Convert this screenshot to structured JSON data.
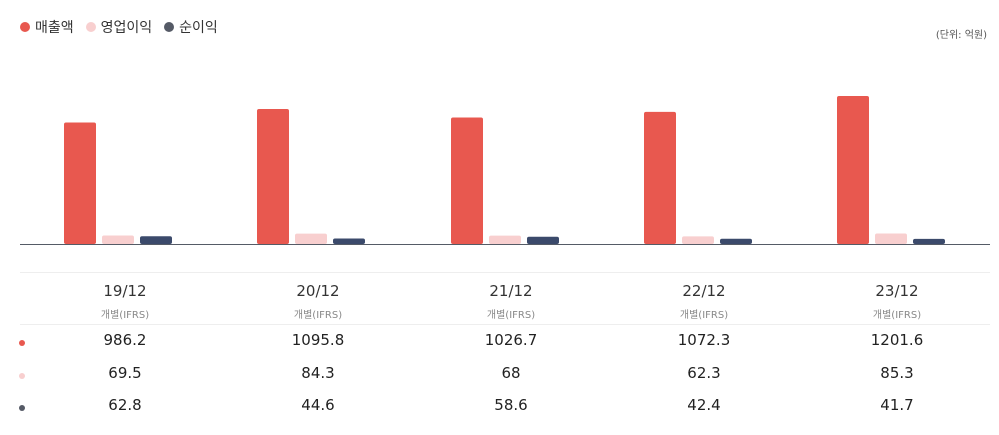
{
  "legend": [
    {
      "label": "매출액",
      "color": "#e8584f"
    },
    {
      "label": "영업이익",
      "color": "#f8cfcf"
    },
    {
      "label": "순이익",
      "color": "#555a66"
    }
  ],
  "unit_label": "(단위: 억원)",
  "columns": [
    {
      "date": "19/12",
      "basis": "개별(IFRS)"
    },
    {
      "date": "20/12",
      "basis": "개별(IFRS)"
    },
    {
      "date": "21/12",
      "basis": "개별(IFRS)"
    },
    {
      "date": "22/12",
      "basis": "개별(IFRS)"
    },
    {
      "date": "23/12",
      "basis": "개별(IFRS)"
    }
  ],
  "rows": [
    {
      "color": "#e8584f",
      "values": [
        "986.2",
        "1095.8",
        "1026.7",
        "1072.3",
        "1201.6"
      ]
    },
    {
      "color": "#f8cfcf",
      "values": [
        "69.5",
        "84.3",
        "68",
        "62.3",
        "85.3"
      ]
    },
    {
      "color": "#555a66",
      "values": [
        "62.8",
        "44.6",
        "58.6",
        "42.4",
        "41.7"
      ]
    }
  ],
  "chart_data": {
    "type": "bar",
    "categories": [
      "19/12",
      "20/12",
      "21/12",
      "22/12",
      "23/12"
    ],
    "series": [
      {
        "name": "매출액",
        "color": "#e8584f",
        "values": [
          986.2,
          1095.8,
          1026.7,
          1072.3,
          1201.6
        ]
      },
      {
        "name": "영업이익",
        "color": "#f8cfcf",
        "values": [
          69.5,
          84.3,
          68,
          62.3,
          85.3
        ]
      },
      {
        "name": "순이익",
        "color": "#3b4a6b",
        "values": [
          62.8,
          44.6,
          58.6,
          42.4,
          41.7
        ]
      }
    ],
    "ylabel": "",
    "ylim": [
      0,
      1201.6
    ],
    "grid": false,
    "legend_position": "top-left"
  }
}
